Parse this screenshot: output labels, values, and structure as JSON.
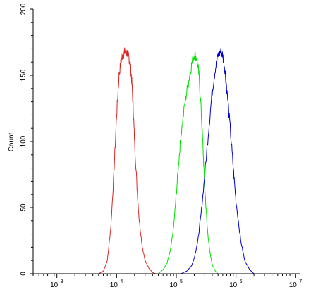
{
  "chart_data": {
    "type": "line",
    "title": "",
    "xlabel": "",
    "ylabel": "Count",
    "x_scale": "log",
    "xlim": [
      400,
      12000000
    ],
    "ylim": [
      0,
      200
    ],
    "y_ticks": [
      "0",
      "50",
      "100",
      "150",
      "200"
    ],
    "x_ticks": [
      {
        "base": "10",
        "exp": "3",
        "value": 1000
      },
      {
        "base": "10",
        "exp": "4",
        "value": 10000
      },
      {
        "base": "10",
        "exp": "5",
        "value": 100000
      },
      {
        "base": "10",
        "exp": "6",
        "value": 1000000
      },
      {
        "base": "10",
        "exp": "7",
        "value": 10000000
      }
    ],
    "grid": false,
    "legend": "none",
    "series": [
      {
        "color": "#d62728",
        "x": [
          5000,
          6000,
          7000,
          8000,
          9000,
          10000,
          11000,
          12000,
          13000,
          14000,
          15000,
          16000,
          17000,
          18000,
          19000,
          20000,
          22000,
          24000,
          27000,
          30000,
          35000,
          40000,
          45000
        ],
        "y": [
          0,
          2,
          10,
          35,
          75,
          120,
          150,
          162,
          166,
          168,
          167,
          164,
          158,
          145,
          125,
          100,
          65,
          40,
          20,
          10,
          4,
          1,
          0
        ]
      },
      {
        "color": "#00e000",
        "x": [
          50000,
          60000,
          70000,
          80000,
          90000,
          100000,
          110000,
          120000,
          140000,
          160000,
          180000,
          200000,
          220000,
          240000,
          260000,
          280000,
          300000,
          330000,
          360000,
          400000,
          450000,
          500000
        ],
        "y": [
          0,
          3,
          8,
          18,
          35,
          60,
          85,
          105,
          130,
          145,
          158,
          166,
          163,
          150,
          125,
          95,
          65,
          35,
          18,
          7,
          2,
          0
        ]
      },
      {
        "color": "#0000cc",
        "x": [
          120000,
          150000,
          180000,
          200000,
          230000,
          260000,
          300000,
          350000,
          400000,
          450000,
          500000,
          550000,
          600000,
          650000,
          700000,
          800000,
          900000,
          1000000,
          1200000,
          1400000,
          1700000,
          2000000
        ],
        "y": [
          0,
          2,
          6,
          12,
          25,
          45,
          75,
          110,
          138,
          155,
          165,
          168,
          165,
          155,
          140,
          110,
          80,
          55,
          25,
          10,
          3,
          0
        ]
      }
    ]
  }
}
